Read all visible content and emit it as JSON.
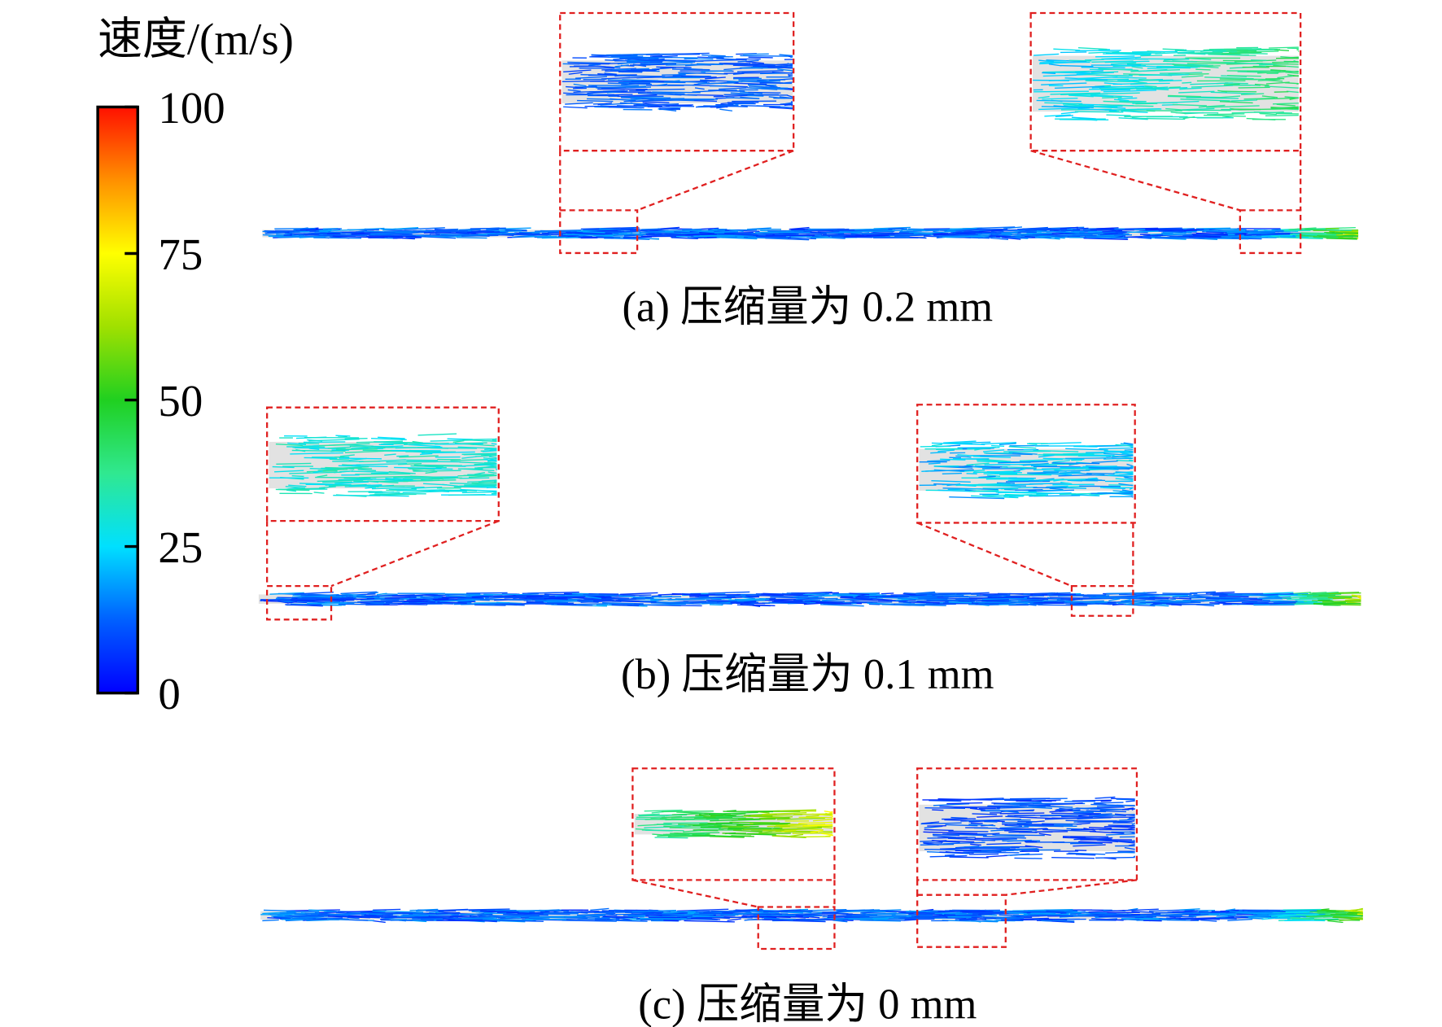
{
  "colorbar": {
    "title": "速度/(m/s)",
    "range": [
      0,
      100
    ],
    "ticks": [
      0,
      25,
      50,
      75,
      100
    ]
  },
  "panels": [
    {
      "caption": "(a) 压缩量为 0.2 mm"
    },
    {
      "caption": "(b) 压缩量为 0.1 mm"
    },
    {
      "caption": "(c) 压缩量为 0 mm"
    }
  ]
}
